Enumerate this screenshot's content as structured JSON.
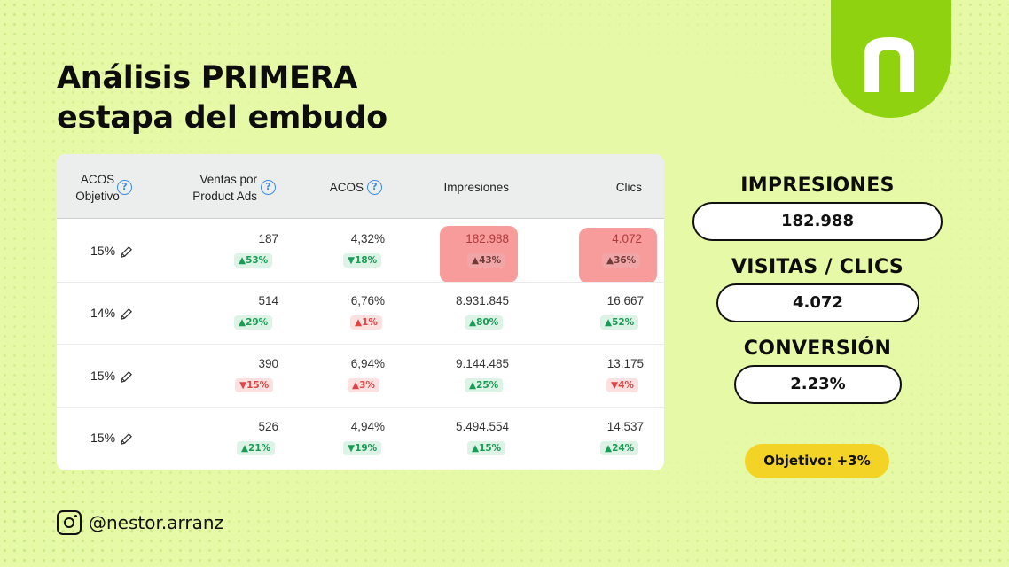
{
  "title": {
    "line1": "Análisis PRIMERA",
    "line2": "estapa del embudo"
  },
  "table": {
    "headers": {
      "acos_obj_1": "ACOS",
      "acos_obj_2": "Objetivo",
      "ventas_1": "Ventas por",
      "ventas_2": "Product Ads",
      "acos": "ACOS",
      "impresiones": "Impresiones",
      "clics": "Clics",
      "help_glyph": "?"
    },
    "rows": [
      {
        "acos_obj": "15%",
        "ventas": "187",
        "ventas_badge": "▲53%",
        "acos": "4,32%",
        "acos_badge": "▼18%",
        "impresiones": "182.988",
        "impresiones_badge": "▲43%",
        "clics": "4.072",
        "clics_badge": "▲36%"
      },
      {
        "acos_obj": "14%",
        "ventas": "514",
        "ventas_badge": "▲29%",
        "acos": "6,76%",
        "acos_badge": "▲1%",
        "impresiones": "8.931.845",
        "impresiones_badge": "▲80%",
        "clics": "16.667",
        "clics_badge": "▲52%"
      },
      {
        "acos_obj": "15%",
        "ventas": "390",
        "ventas_badge": "▼15%",
        "acos": "6,94%",
        "acos_badge": "▲3%",
        "impresiones": "9.144.485",
        "impresiones_badge": "▲25%",
        "clics": "13.175",
        "clics_badge": "▼4%"
      },
      {
        "acos_obj": "15%",
        "ventas": "526",
        "ventas_badge": "▲21%",
        "acos": "4,94%",
        "acos_badge": "▼19%",
        "impresiones": "5.494.554",
        "impresiones_badge": "▲15%",
        "clics": "14.537",
        "clics_badge": "▲24%"
      }
    ]
  },
  "metrics": {
    "impresiones_label": "IMPRESIONES",
    "impresiones_value": "182.988",
    "visitas_label": "VISITAS / CLICS",
    "visitas_value": "4.072",
    "conversion_label": "CONVERSIÓN",
    "conversion_value": "2.23%"
  },
  "objetivo": "Objetivo: +3%",
  "social": {
    "handle": "@nestor.arranz",
    "icon": "instagram-icon"
  },
  "logo": {
    "letter": "n",
    "icon": "brand-logo-icon"
  },
  "colors": {
    "background": "#e6f9a6",
    "brand_green": "#8fd20f",
    "highlight": "#f79b9b",
    "up": "#1a9c55",
    "down": "#e04545",
    "objetivo_yellow": "#f2d326",
    "help_blue": "#3a8ee6"
  }
}
